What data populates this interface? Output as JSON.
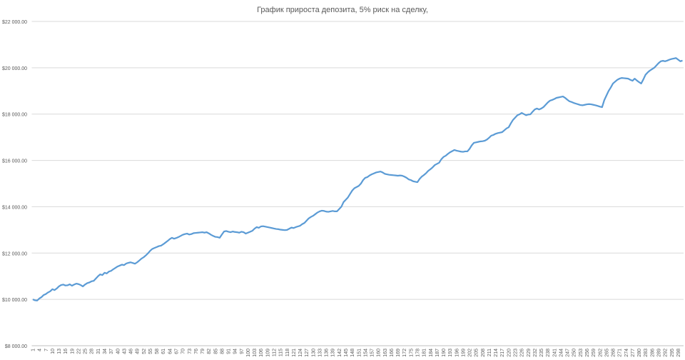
{
  "chart_data": {
    "type": "line",
    "title": "График прироста депозита, 5% риск на сделку,",
    "color": "#5b9bd5",
    "grid": true,
    "ylim": [
      8000,
      22000
    ],
    "yticks": [
      {
        "value": 8000,
        "label": "$8 000.00"
      },
      {
        "value": 10000,
        "label": "$10 000.00"
      },
      {
        "value": 12000,
        "label": "$12 000.00"
      },
      {
        "value": 14000,
        "label": "$14 000.00"
      },
      {
        "value": 16000,
        "label": "$16 000.00"
      },
      {
        "value": 18000,
        "label": "$18 000.00"
      },
      {
        "value": 20000,
        "label": "$20 000.00"
      },
      {
        "value": 22000,
        "label": "$22 000.00"
      }
    ],
    "categories": [
      "1",
      null,
      null,
      "4",
      null,
      null,
      "7",
      null,
      null,
      "10",
      null,
      null,
      "13",
      null,
      null,
      "16",
      null,
      null,
      "19",
      null,
      null,
      "22",
      null,
      null,
      "25",
      null,
      null,
      "28",
      null,
      null,
      "31",
      null,
      null,
      "34",
      null,
      null,
      "37",
      null,
      null,
      "40",
      null,
      null,
      "43",
      null,
      null,
      "46",
      null,
      null,
      "49",
      null,
      null,
      "52",
      null,
      null,
      "55",
      null,
      null,
      "58",
      null,
      null,
      "61",
      null,
      null,
      "64",
      null,
      null,
      "67",
      null,
      null,
      "70",
      null,
      null,
      "73",
      null,
      null,
      "76",
      null,
      null,
      "79",
      null,
      null,
      "82",
      null,
      null,
      "85",
      null,
      null,
      "88",
      null,
      null,
      "91",
      null,
      null,
      "94",
      null,
      null,
      "97",
      null,
      null,
      "100",
      null,
      null,
      "103",
      null,
      null,
      "106",
      null,
      null,
      "109",
      null,
      null,
      "112",
      null,
      null,
      "115",
      null,
      null,
      "118",
      null,
      null,
      "121",
      null,
      null,
      "124",
      null,
      null,
      "127",
      null,
      null,
      "130",
      null,
      null,
      "133",
      null,
      null,
      "136",
      null,
      null,
      "139",
      null,
      null,
      "142",
      null,
      null,
      "145",
      null,
      null,
      "148",
      null,
      null,
      "151",
      null,
      null,
      "154",
      null,
      null,
      "157",
      null,
      null,
      "160",
      null,
      null,
      "163",
      null,
      null,
      "166",
      null,
      null,
      "169",
      null,
      null,
      "172",
      null,
      null,
      "175",
      null,
      null,
      "178",
      null,
      null,
      "181",
      null,
      null,
      "184",
      null,
      null,
      "187",
      null,
      null,
      "190",
      null,
      null,
      "193",
      null,
      null,
      "196",
      null,
      null,
      "199",
      null,
      null,
      "202",
      null,
      null,
      "205",
      null,
      null,
      "208",
      null,
      null,
      "211",
      null,
      null,
      "214",
      null,
      null,
      "217",
      null,
      null,
      "220",
      null,
      null,
      "223",
      null,
      null,
      "226",
      null,
      null,
      "229",
      null,
      null,
      "232",
      null,
      null,
      "235",
      null,
      null,
      "238",
      null,
      null,
      "241",
      null,
      null,
      "244",
      null,
      null,
      "247",
      null,
      null,
      "250",
      null,
      null,
      "253",
      null,
      null,
      "256",
      null,
      null,
      "259",
      null,
      null,
      "262",
      null,
      null,
      "265",
      null,
      null,
      "268",
      null,
      null,
      "271",
      null,
      null,
      "274",
      null,
      null,
      "277",
      null,
      null,
      "280",
      null,
      null,
      "283",
      null,
      null,
      "286",
      null,
      null,
      "289",
      null,
      null,
      "292",
      null,
      null,
      "295",
      null,
      null,
      "298",
      null,
      null
    ],
    "values": [
      10000,
      9960,
      9950,
      10040,
      10100,
      10190,
      10230,
      10300,
      10350,
      10440,
      10400,
      10470,
      10560,
      10620,
      10640,
      10600,
      10610,
      10650,
      10590,
      10640,
      10680,
      10660,
      10620,
      10560,
      10640,
      10700,
      10730,
      10780,
      10800,
      10900,
      11000,
      11080,
      11050,
      11150,
      11120,
      11200,
      11230,
      11300,
      11360,
      11420,
      11460,
      11500,
      11480,
      11550,
      11580,
      11600,
      11570,
      11540,
      11600,
      11680,
      11760,
      11820,
      11900,
      11990,
      12100,
      12180,
      12220,
      12260,
      12300,
      12320,
      12380,
      12450,
      12520,
      12600,
      12660,
      12620,
      12650,
      12690,
      12740,
      12790,
      12820,
      12840,
      12800,
      12820,
      12860,
      12870,
      12880,
      12890,
      12900,
      12880,
      12900,
      12850,
      12790,
      12740,
      12700,
      12690,
      12660,
      12800,
      12930,
      12950,
      12920,
      12900,
      12930,
      12910,
      12900,
      12880,
      12920,
      12900,
      12840,
      12880,
      12920,
      12960,
      13050,
      13120,
      13090,
      13150,
      13160,
      13140,
      13120,
      13100,
      13080,
      13060,
      13040,
      13030,
      13010,
      13000,
      12990,
      13000,
      13050,
      13100,
      13080,
      13120,
      13150,
      13180,
      13250,
      13300,
      13400,
      13500,
      13560,
      13610,
      13680,
      13750,
      13800,
      13830,
      13820,
      13790,
      13780,
      13800,
      13820,
      13800,
      13800,
      13900,
      14000,
      14200,
      14300,
      14400,
      14550,
      14700,
      14800,
      14850,
      14900,
      15000,
      15150,
      15250,
      15280,
      15350,
      15400,
      15440,
      15480,
      15500,
      15520,
      15480,
      15420,
      15400,
      15380,
      15370,
      15360,
      15350,
      15340,
      15350,
      15340,
      15300,
      15250,
      15180,
      15150,
      15100,
      15080,
      15060,
      15200,
      15300,
      15370,
      15450,
      15550,
      15620,
      15700,
      15800,
      15850,
      15900,
      16050,
      16150,
      16200,
      16280,
      16350,
      16400,
      16450,
      16420,
      16400,
      16380,
      16370,
      16390,
      16390,
      16500,
      16650,
      16760,
      16780,
      16800,
      16820,
      16830,
      16850,
      16900,
      16980,
      17070,
      17100,
      17150,
      17180,
      17200,
      17220,
      17300,
      17380,
      17430,
      17600,
      17750,
      17850,
      17950,
      17990,
      18050,
      18000,
      17950,
      17980,
      17990,
      18100,
      18200,
      18240,
      18200,
      18240,
      18300,
      18400,
      18500,
      18580,
      18610,
      18650,
      18700,
      18720,
      18740,
      18760,
      18700,
      18620,
      18550,
      18520,
      18480,
      18450,
      18420,
      18390,
      18380,
      18400,
      18420,
      18430,
      18420,
      18400,
      18380,
      18350,
      18320,
      18300,
      18600,
      18800,
      19000,
      19150,
      19320,
      19400,
      19480,
      19530,
      19560,
      19550,
      19540,
      19530,
      19480,
      19440,
      19530,
      19450,
      19380,
      19320,
      19500,
      19700,
      19800,
      19880,
      19940,
      20000,
      20100,
      20200,
      20280,
      20300,
      20280,
      20310,
      20350,
      20380,
      20400,
      20420,
      20350,
      20280,
      20310
    ]
  }
}
